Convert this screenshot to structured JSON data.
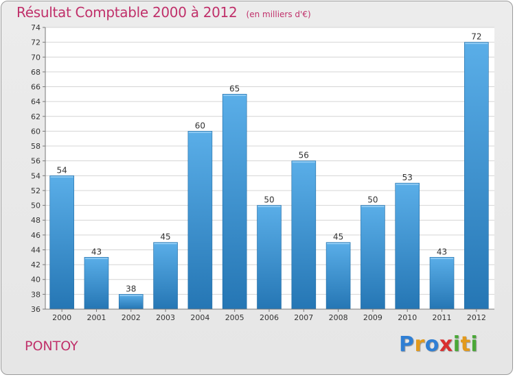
{
  "header": {
    "title": "Résultat Comptable 2000 à 2012",
    "subtitle": "(en milliers d'€)"
  },
  "footer": {
    "commune": "PONTOY",
    "logo_letters": [
      {
        "ch": "P",
        "color": "#2f7fd4"
      },
      {
        "ch": "r",
        "color": "#e39a1c"
      },
      {
        "ch": "o",
        "color": "#2f7fd4"
      },
      {
        "ch": "x",
        "color": "#d92f2f"
      },
      {
        "ch": "i",
        "color": "#4aa837"
      },
      {
        "ch": "t",
        "color": "#e39a1c"
      },
      {
        "ch": "i",
        "color": "#4aa837"
      }
    ]
  },
  "colors": {
    "accent": "#c0306a",
    "bar_top": "#5aaee8",
    "bar_bottom": "#2576b4"
  },
  "chart_data": {
    "type": "bar",
    "categories": [
      "2000",
      "2001",
      "2002",
      "2003",
      "2004",
      "2005",
      "2006",
      "2007",
      "2008",
      "2009",
      "2010",
      "2011",
      "2012"
    ],
    "values": [
      54,
      43,
      38,
      45,
      60,
      65,
      50,
      56,
      45,
      50,
      53,
      43,
      72
    ],
    "title": "Résultat Comptable 2000 à 2012",
    "xlabel": "",
    "ylabel": "",
    "ylim": [
      36,
      74
    ],
    "ytick_step": 2,
    "grid": true,
    "data_labels": true
  }
}
